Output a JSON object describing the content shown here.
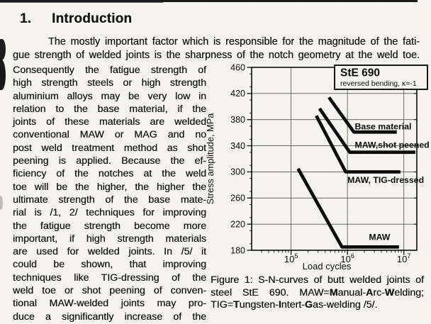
{
  "page": {
    "heading": {
      "number": "1.",
      "title": "Introduction"
    },
    "intro_lines": [
      "The mostly important factor which is responsible for the magnitude of the fati-",
      "gue strength of welded joints is the sharpness of the notch geometry at the weld toe."
    ],
    "column_lines": [
      "Consequently the fatigue strength of",
      "high strength steels or high strength",
      "aluminium alloys may be very low in",
      "relation to the base material, if the",
      "joints of these materials are welded",
      "conventional MAW or MAG and no",
      "post weld treatment method as shot",
      "peening is applied. Because the ef-",
      "ficiency of the notches at the weld",
      "toe will be the higher, the higher the",
      "ultimate strength of the base mate-",
      "rial is /1, 2/ techniques for improving",
      "the fatigue strength become more",
      "important, if high strength materials",
      "are used for welded joints. In /5/ it",
      "could be shown, that improving",
      "techniques like TIG-dressing of the",
      "weld toe or shot peening of conven-",
      "tional MAW-welded joints may pro-",
      "duce a significantly increase of the"
    ],
    "caption_lines": [
      [
        {
          "t": "Figure 1: S-N-curves of butt welded joints of"
        }
      ],
      [
        {
          "t": "steel StE 690. MAW="
        },
        {
          "t": "M",
          "b": true
        },
        {
          "t": "anual-"
        },
        {
          "t": "A",
          "b": true
        },
        {
          "t": "rc-"
        },
        {
          "t": "W",
          "b": true
        },
        {
          "t": "elding;"
        }
      ],
      [
        {
          "t": "TIG="
        },
        {
          "t": "T",
          "b": true
        },
        {
          "t": "ungsten-"
        },
        {
          "t": "I",
          "b": true
        },
        {
          "t": "ntert-"
        },
        {
          "t": "G",
          "b": true
        },
        {
          "t": "as-welding /5/."
        }
      ]
    ]
  },
  "chart_data": {
    "type": "line",
    "title": "StE 690",
    "subtitle": "reversed bending, κ=-1",
    "xlabel": "Load cycles",
    "ylabel": "Stress amplitude, MPa",
    "x_scale": "log",
    "xlim": [
      20000,
      17000000
    ],
    "ylim": [
      180,
      460
    ],
    "y_ticks": [
      180,
      220,
      260,
      300,
      340,
      380,
      420,
      460
    ],
    "x_ticks": [
      {
        "value": 100000,
        "base": "10",
        "exp": "5"
      },
      {
        "value": 1000000,
        "base": "10",
        "exp": "6"
      },
      {
        "value": 10000000,
        "base": "10",
        "exp": "7"
      }
    ],
    "grid": true,
    "legend_position": "top-right",
    "series": [
      {
        "name": "Base material",
        "points": [
          [
            470000,
            414
          ],
          [
            1300000,
            361
          ],
          [
            7500000,
            361
          ]
        ],
        "label_at": [
          1350000,
          365
        ]
      },
      {
        "name": "MAW,shot peened",
        "points": [
          [
            320000,
            397
          ],
          [
            1100000,
            330
          ],
          [
            16000000,
            330
          ]
        ],
        "label_at": [
          1350000,
          337
        ]
      },
      {
        "name": "MAW, TIG-dressed",
        "points": [
          [
            280000,
            386
          ],
          [
            930000,
            300
          ],
          [
            8700000,
            300
          ]
        ],
        "label_at": [
          1000000,
          283
        ]
      },
      {
        "name": "MAW",
        "points": [
          [
            133000,
            305
          ],
          [
            800000,
            185
          ],
          [
            8200000,
            185
          ]
        ],
        "label_at": [
          2400000,
          196
        ]
      }
    ]
  }
}
